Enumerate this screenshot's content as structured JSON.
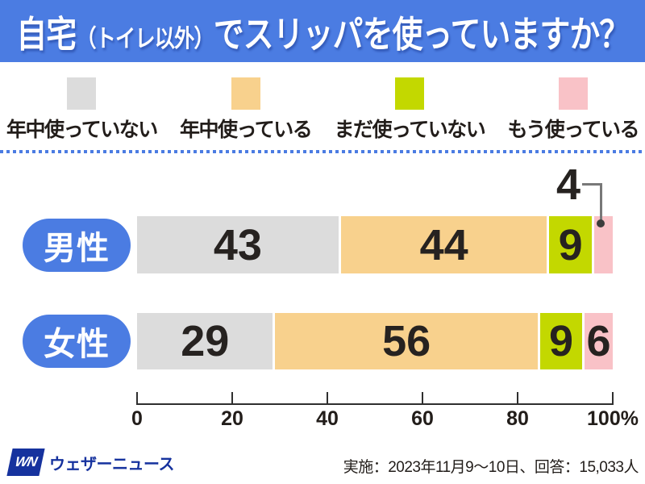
{
  "title": {
    "part1": "自宅",
    "part2": "（トイレ以外）",
    "part3": "でスリッパを使っていますか？"
  },
  "chart_data": {
    "type": "bar",
    "orientation": "horizontal",
    "stacked": true,
    "title": "自宅（トイレ以外）でスリッパを使っていますか？",
    "categories": [
      "男性",
      "女性"
    ],
    "series": [
      {
        "name": "年中使っていない",
        "color": "#dcdcdc",
        "values": [
          43,
          29
        ]
      },
      {
        "name": "年中使っている",
        "color": "#f8d18d",
        "values": [
          44,
          56
        ]
      },
      {
        "name": "まだ使っていない",
        "color": "#c3d800",
        "values": [
          9,
          9
        ]
      },
      {
        "name": "もう使っている",
        "color": "#f9c2c7",
        "values": [
          4,
          6
        ]
      }
    ],
    "value_unit": "%",
    "xlim": [
      0,
      100
    ],
    "x_ticks": [
      "0",
      "20",
      "40",
      "60",
      "80",
      "100%"
    ],
    "legend_position": "top",
    "grid": false,
    "callout": {
      "category": "男性",
      "series": "もう使っている",
      "value_label": "4"
    }
  },
  "footer": {
    "logo_mark": "WN",
    "logo_text": "ウェザーニュース",
    "caption": "実施：2023年11月9〜10日、回答：15,033人"
  },
  "colors": {
    "accent_blue": "#4b7ce2",
    "logo_navy": "#16329e",
    "bar_number": "#262220",
    "axis": "#2f2f2f",
    "label_text": "#221d1a"
  }
}
